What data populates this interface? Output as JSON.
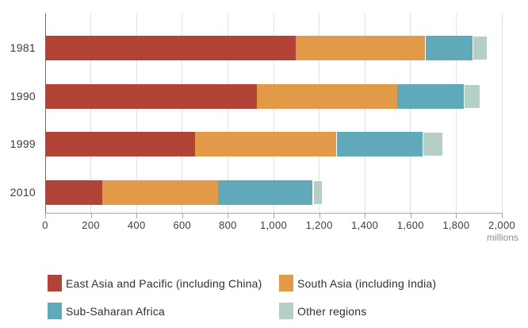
{
  "chart_data": {
    "type": "bar",
    "orientation": "horizontal",
    "stacked": true,
    "title": "",
    "categories": [
      "1981",
      "1990",
      "1999",
      "2010"
    ],
    "series": [
      {
        "name": "East Asia and Pacific (including China)",
        "color": "#b14337",
        "values": [
          1097,
          926,
          656,
          251
        ]
      },
      {
        "name": "South Asia (including India)",
        "color": "#e39a48",
        "values": [
          568,
          617,
          620,
          507
        ]
      },
      {
        "name": "Sub-Saharan Africa",
        "color": "#5fa9ba",
        "values": [
          205,
          290,
          377,
          414
        ]
      },
      {
        "name": "Other regions",
        "color": "#b5cec6",
        "values": [
          68,
          75,
          91,
          42
        ]
      }
    ],
    "x_axis": {
      "min": 0,
      "max": 2000,
      "tick_interval": 200,
      "tick_labels": [
        "0",
        "200",
        "400",
        "600",
        "800",
        "1,000",
        "1,200",
        "1,400",
        "1,600",
        "1,800",
        "2,000"
      ],
      "unit_label": "millions"
    },
    "grid": "vertical",
    "legend_position": "bottom",
    "colors": {
      "gridline": "#e1e1e1",
      "y_axis": "#6e6e6e",
      "x_axis": "#a8a8a8",
      "tick_text": "#3d3d3d",
      "unit_text": "#8d8d8d",
      "legend_text": "#2f2f2f"
    }
  }
}
